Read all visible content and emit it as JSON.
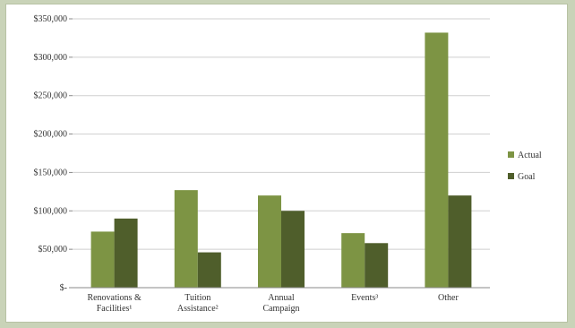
{
  "chart_data": {
    "type": "bar",
    "title": "",
    "xlabel": "",
    "ylabel": "",
    "categories": [
      [
        "Renovations &",
        "Facilities¹"
      ],
      [
        "Tuition",
        "Assistance²"
      ],
      [
        "Annual",
        "Campaign"
      ],
      [
        "Events³"
      ],
      [
        "Other"
      ]
    ],
    "series": [
      {
        "name": "Actual",
        "color": "#7d9444",
        "values": [
          73000,
          127000,
          120000,
          71000,
          332000
        ]
      },
      {
        "name": "Goal",
        "color": "#4f5e2b",
        "values": [
          90000,
          46000,
          100000,
          58000,
          120000
        ]
      }
    ],
    "ylim": [
      0,
      350000
    ],
    "yticks": [
      0,
      50000,
      100000,
      150000,
      200000,
      250000,
      300000,
      350000
    ],
    "ytick_labels": [
      "$-",
      "$50,000",
      "$100,000",
      "$150,000",
      "$200,000",
      "$250,000",
      "$300,000",
      "$350,000"
    ],
    "grid": true,
    "legend_position": "right"
  }
}
